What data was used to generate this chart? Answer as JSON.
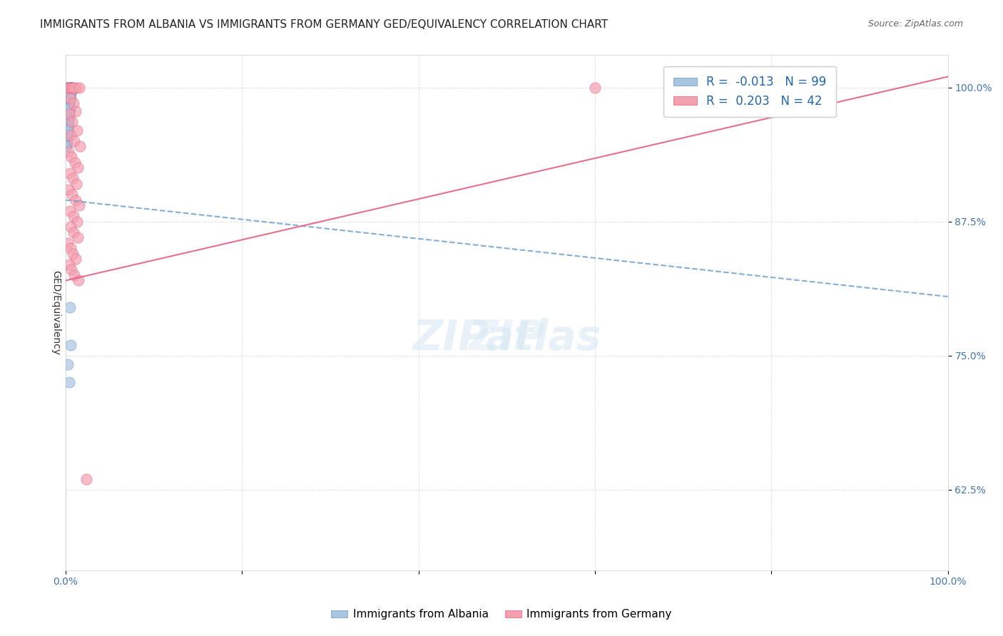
{
  "title": "IMMIGRANTS FROM ALBANIA VS IMMIGRANTS FROM GERMANY GED/EQUIVALENCY CORRELATION CHART",
  "source": "Source: ZipAtlas.com",
  "xlabel": "",
  "ylabel": "GED/Equivalency",
  "xlim": [
    0,
    100
  ],
  "ylim": [
    55,
    103
  ],
  "yticks": [
    62.5,
    75.0,
    87.5,
    100.0
  ],
  "xticks": [
    0,
    20,
    40,
    60,
    80,
    100
  ],
  "xtick_labels": [
    "0.0%",
    "",
    "",
    "",
    "",
    "100.0%"
  ],
  "ytick_labels": [
    "62.5%",
    "75.0%",
    "87.5%",
    "100.0%"
  ],
  "albania_R": -0.013,
  "albania_N": 99,
  "germany_R": 0.203,
  "germany_N": 42,
  "albania_color": "#a8c4e0",
  "germany_color": "#f4a0b0",
  "albania_trend_color": "#6699cc",
  "germany_trend_color": "#e06080",
  "watermark": "ZIPatlas",
  "albania_x": [
    0.13,
    0.26,
    0.08,
    0.18,
    0.35,
    0.22,
    0.45,
    0.52,
    0.15,
    0.09,
    0.31,
    0.42,
    0.55,
    0.28,
    0.19,
    0.38,
    0.61,
    0.48,
    0.25,
    0.17,
    0.72,
    0.33,
    0.44,
    0.56,
    0.21,
    0.14,
    0.29,
    0.37,
    0.49,
    0.62,
    0.11,
    0.23,
    0.41,
    0.53,
    0.68,
    0.16,
    0.34,
    0.47,
    0.59,
    0.24,
    0.36,
    0.57,
    0.43,
    0.31,
    0.2,
    0.27,
    0.39,
    0.51,
    0.64,
    0.18,
    0.32,
    0.46,
    0.6,
    0.26,
    0.4,
    0.54,
    0.67,
    0.22,
    0.35,
    0.48,
    0.12,
    0.28,
    0.44,
    0.58,
    0.73,
    0.19,
    0.37,
    0.52,
    0.66,
    0.3,
    0.45,
    0.61,
    0.24,
    0.38,
    0.55,
    0.69,
    0.15,
    0.31,
    0.47,
    0.62,
    0.21,
    0.36,
    0.5,
    0.65,
    0.1,
    0.25,
    0.41,
    0.57,
    0.72,
    0.17,
    0.33,
    0.49,
    0.63,
    0.2,
    0.34,
    0.47,
    0.58,
    0.4,
    0.23
  ],
  "albania_y": [
    100.0,
    100.0,
    97.5,
    96.8,
    100.0,
    96.0,
    100.0,
    100.0,
    95.2,
    94.8,
    97.0,
    98.5,
    100.0,
    96.5,
    95.8,
    99.0,
    100.0,
    98.0,
    96.2,
    95.5,
    100.0,
    97.8,
    98.8,
    100.0,
    96.8,
    95.2,
    97.2,
    98.2,
    99.2,
    100.0,
    94.5,
    96.0,
    98.5,
    99.5,
    100.0,
    95.0,
    97.5,
    99.0,
    100.0,
    96.5,
    98.0,
    100.0,
    98.8,
    97.2,
    96.0,
    97.0,
    98.5,
    99.5,
    100.0,
    95.5,
    97.5,
    99.2,
    100.0,
    97.0,
    98.8,
    99.8,
    100.0,
    96.8,
    97.8,
    99.2,
    94.8,
    97.2,
    98.8,
    99.8,
    100.0,
    95.8,
    98.2,
    99.5,
    100.0,
    97.5,
    99.0,
    100.0,
    96.5,
    98.5,
    99.8,
    100.0,
    95.2,
    97.8,
    99.2,
    100.0,
    96.2,
    98.2,
    99.5,
    100.0,
    94.5,
    97.0,
    99.0,
    100.0,
    100.0,
    95.5,
    97.8,
    99.5,
    100.0,
    96.0,
    98.0,
    79.5,
    76.0,
    72.5,
    74.2
  ],
  "germany_x": [
    0.18,
    0.45,
    0.72,
    1.2,
    0.85,
    1.5,
    0.6,
    0.9,
    1.1,
    0.4,
    0.75,
    1.3,
    0.55,
    0.95,
    1.6,
    0.3,
    0.65,
    1.05,
    1.4,
    0.5,
    0.8,
    1.2,
    0.35,
    0.7,
    1.1,
    1.55,
    0.45,
    0.85,
    1.25,
    0.6,
    0.92,
    1.35,
    0.25,
    0.55,
    0.78,
    1.15,
    0.42,
    0.68,
    0.98,
    1.45,
    2.3,
    60.0
  ],
  "germany_y": [
    100.0,
    100.0,
    100.0,
    100.0,
    100.0,
    100.0,
    99.0,
    98.5,
    97.8,
    97.5,
    96.8,
    96.0,
    95.5,
    95.0,
    94.5,
    94.0,
    93.5,
    93.0,
    92.5,
    92.0,
    91.5,
    91.0,
    90.5,
    90.0,
    89.5,
    89.0,
    88.5,
    88.0,
    87.5,
    87.0,
    86.5,
    86.0,
    85.5,
    85.0,
    84.5,
    84.0,
    83.5,
    83.0,
    82.5,
    82.0,
    63.5,
    100.0
  ],
  "title_fontsize": 11,
  "axis_label_fontsize": 10,
  "tick_fontsize": 10,
  "background_color": "#ffffff"
}
